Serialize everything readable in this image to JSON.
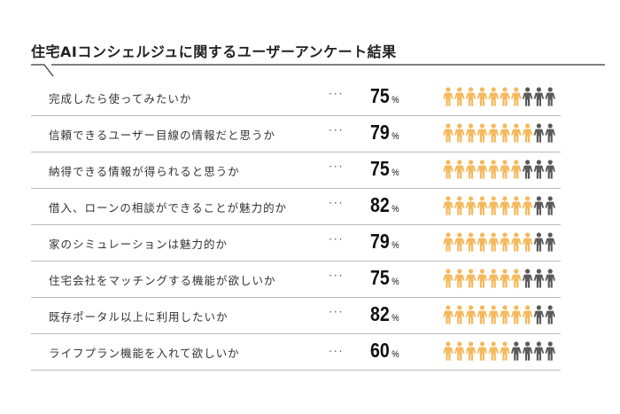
{
  "chart_data": {
    "type": "table",
    "title": "住宅AIコンシェルジュに関するユーザーアンケート結果",
    "unit": "%",
    "icons_per_row": 10,
    "colors": {
      "filled": "#F5B85A",
      "empty": "#5A5A5A"
    },
    "rows": [
      {
        "question": "完成したら使ってみたいか",
        "dots": "···",
        "value": 75,
        "filled_icons": 7
      },
      {
        "question": "信頼できるユーザー目線の情報だと思うか",
        "dots": "···",
        "value": 79,
        "filled_icons": 8
      },
      {
        "question": "納得できる情報が得られると思うか",
        "dots": "···",
        "value": 75,
        "filled_icons": 7
      },
      {
        "question": "借入、ローンの相談ができることが魅力的か",
        "dots": "···",
        "value": 82,
        "filled_icons": 8
      },
      {
        "question": "家のシミュレーションは魅力的か",
        "dots": "···",
        "value": 79,
        "filled_icons": 8
      },
      {
        "question": "住宅会社をマッチングする機能が欲しいか",
        "dots": "···",
        "value": 75,
        "filled_icons": 7
      },
      {
        "question": "既存ポータル以上に利用したいか",
        "dots": "···",
        "value": 82,
        "filled_icons": 8
      },
      {
        "question": "ライフプラン機能を入れて欲しいか",
        "dots": "...",
        "value": 60,
        "filled_icons": 6
      }
    ]
  }
}
